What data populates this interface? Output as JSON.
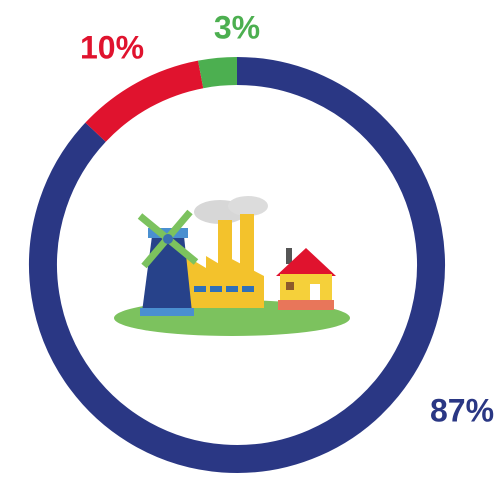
{
  "chart_data": {
    "type": "donut",
    "categories": [
      null,
      null,
      null
    ],
    "values": [
      87,
      10,
      3
    ],
    "value_labels": [
      "87%",
      "10%",
      "3%"
    ],
    "colors": [
      "#2a3784",
      "#e0132e",
      "#4caf50"
    ]
  }
}
